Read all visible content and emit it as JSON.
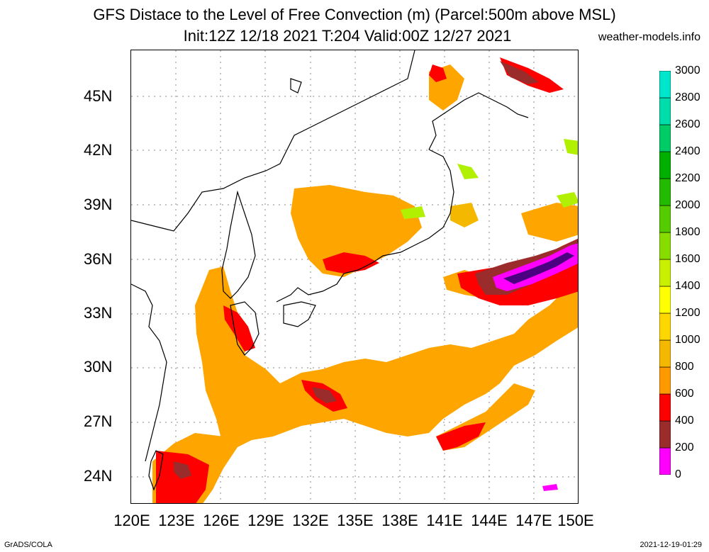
{
  "title_line1": "GFS Distace to the Level of Free Convection (m) (Parcel:500m above MSL)",
  "title_line2": "Init:12Z 12/18 2021 T:204 Valid:00Z 12/27 2021",
  "site": "weather-models.info",
  "footer_left": "GrADS/COLA",
  "footer_right": "2021-12-19-01:29",
  "map": {
    "lon_range": [
      120,
      150
    ],
    "lat_range": [
      22.5,
      47.5
    ],
    "lat_labels": [
      {
        "value": 45,
        "label": "45N"
      },
      {
        "value": 42,
        "label": "42N"
      },
      {
        "value": 39,
        "label": "39N"
      },
      {
        "value": 36,
        "label": "36N"
      },
      {
        "value": 33,
        "label": "33N"
      },
      {
        "value": 30,
        "label": "30N"
      },
      {
        "value": 27,
        "label": "27N"
      },
      {
        "value": 24,
        "label": "24N"
      }
    ],
    "lon_labels": [
      {
        "value": 120,
        "label": "120E"
      },
      {
        "value": 123,
        "label": "123E"
      },
      {
        "value": 126,
        "label": "126E"
      },
      {
        "value": 129,
        "label": "129E"
      },
      {
        "value": 132,
        "label": "132E"
      },
      {
        "value": 135,
        "label": "135E"
      },
      {
        "value": 138,
        "label": "138E"
      },
      {
        "value": 141,
        "label": "141E"
      },
      {
        "value": 144,
        "label": "144E"
      },
      {
        "value": 147,
        "label": "147E"
      },
      {
        "value": 150,
        "label": "150E"
      }
    ]
  },
  "colorbar": {
    "levels": [
      "0",
      "200",
      "400",
      "600",
      "800",
      "1000",
      "1200",
      "1400",
      "1600",
      "1800",
      "2000",
      "2200",
      "2400",
      "2600",
      "2800",
      "3000"
    ],
    "colors": [
      "#4b0082",
      "#ff00ff",
      "#9b2c2c",
      "#ff0000",
      "#ff9900",
      "#f5b800",
      "#ffd700",
      "#ffff00",
      "#c8f000",
      "#88dd00",
      "#55cc00",
      "#22bb00",
      "#00b000",
      "#00cc66",
      "#00ddaa",
      "#00e6cc",
      "#00f0ee"
    ]
  },
  "contour_colors": {
    "orange": "#ffa500",
    "red": "#ff0000",
    "brown": "#a52a2a",
    "magenta": "#ff00ff",
    "purple": "#4b0082",
    "lime": "#b0f000"
  }
}
